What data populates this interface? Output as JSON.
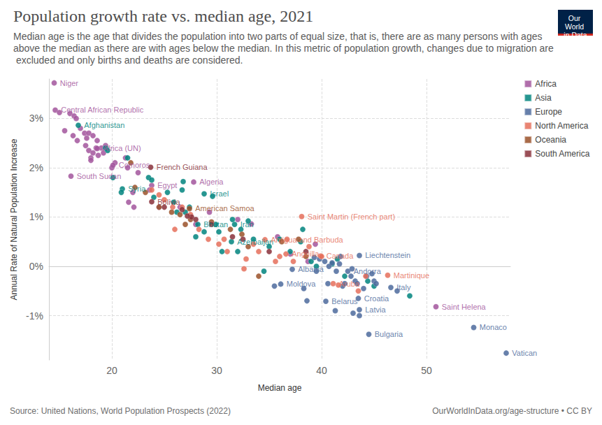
{
  "chart_data": {
    "type": "scatter",
    "title": "Population growth rate vs. median age, 2021",
    "subtitle": "Median age is the age that divides the population into two parts of equal size, that is, there are as many persons with ages above the median as there are with ages below the median. In this metric of population growth, changes due to migration are excluded and only births and deaths are considered.",
    "x_label": "Median age",
    "y_label": "Annual Rate of Natural Population Increase",
    "source": "Source: United Nations, World Population Prospects (2022)",
    "credit": "OurWorldInData.org/age-structure • CC BY",
    "logo": "Our World in Data",
    "xlim": [
      14,
      58
    ],
    "ylim": [
      -1.9,
      3.8
    ],
    "xticks": [
      20,
      30,
      40,
      50
    ],
    "yticks": [
      {
        "value": -1,
        "label": "-1%"
      },
      {
        "value": 0,
        "label": "0%"
      },
      {
        "value": 1,
        "label": "1%"
      },
      {
        "value": 2,
        "label": "2%"
      },
      {
        "value": 3,
        "label": "3%"
      }
    ],
    "grid": true,
    "legend": "top-right",
    "series": [
      {
        "name": "Africa",
        "color": "#a2559c",
        "values": [
          [
            14.5,
            3.72,
            "Niger"
          ],
          [
            14.6,
            3.17,
            "Central African Republic"
          ],
          [
            15.0,
            3.12
          ],
          [
            16.0,
            3.1
          ],
          [
            16.4,
            3.05
          ],
          [
            16.6,
            3.0
          ],
          [
            15.5,
            2.75
          ],
          [
            16.3,
            2.65
          ],
          [
            16.7,
            2.55
          ],
          [
            17.0,
            2.8
          ],
          [
            17.4,
            2.7
          ],
          [
            17.6,
            2.6
          ],
          [
            17.8,
            2.7
          ],
          [
            18.2,
            2.65
          ],
          [
            17.5,
            2.45
          ],
          [
            17.8,
            2.35
          ],
          [
            18.0,
            2.2
          ],
          [
            18.2,
            2.3
          ],
          [
            18.5,
            2.4
          ],
          [
            18.7,
            2.25
          ],
          [
            19.0,
            2.4
          ],
          [
            19.2,
            2.3
          ],
          [
            18.0,
            2.15
          ],
          [
            18.6,
            2.55
          ],
          [
            19.4,
            2.45
          ],
          [
            20.0,
            2.0
          ],
          [
            20.3,
            2.1
          ],
          [
            18.6,
            2.39,
            "Africa (UN)"
          ],
          [
            20.1,
            2.05,
            "Comoros"
          ],
          [
            16.1,
            1.83,
            "South Sudan"
          ],
          [
            21.3,
            2.2
          ],
          [
            21.5,
            2.0
          ],
          [
            22.0,
            1.5
          ],
          [
            22.5,
            1.9
          ],
          [
            21.6,
            1.3
          ],
          [
            22.1,
            1.2
          ],
          [
            23.8,
            1.64,
            "Egypt"
          ],
          [
            23.6,
            1.55
          ],
          [
            24.5,
            1.2
          ],
          [
            27.8,
            1.71,
            "Algeria"
          ],
          [
            26.5,
            1.2
          ],
          [
            29.3,
            1.1
          ],
          [
            32.0,
            0.95
          ],
          [
            33.3,
            0.86
          ],
          [
            28.0,
            0.85
          ],
          [
            35.8,
            0.6
          ],
          [
            37.0,
            0.25
          ],
          [
            38.7,
            0.1
          ],
          [
            39.4,
            0.45
          ],
          [
            50.9,
            -0.82,
            "Saint Helena"
          ]
        ]
      },
      {
        "name": "Asia",
        "color": "#00847e",
        "values": [
          [
            16.8,
            2.86,
            "Afghanistan"
          ],
          [
            19.4,
            2.4
          ],
          [
            19.6,
            2.35
          ],
          [
            20.1,
            1.8
          ],
          [
            21.0,
            1.57,
            "Syria"
          ],
          [
            21.5,
            2.2
          ],
          [
            20.9,
            1.5
          ],
          [
            23.5,
            1.8
          ],
          [
            23.8,
            1.75
          ],
          [
            24.0,
            1.4
          ],
          [
            25.3,
            1.5
          ],
          [
            26.7,
            1.55
          ],
          [
            26.8,
            1.72
          ],
          [
            28.8,
            1.47,
            "Israel"
          ],
          [
            29.6,
            1.42
          ],
          [
            27.4,
            1.2
          ],
          [
            28.2,
            0.85,
            "Bhutan"
          ],
          [
            25.9,
            1.3
          ],
          [
            27.0,
            1.1
          ],
          [
            28.8,
            0.7
          ],
          [
            29.9,
            0.85
          ],
          [
            31.7,
            0.85,
            "Iran"
          ],
          [
            32.3,
            0.75
          ],
          [
            31.5,
            0.95
          ],
          [
            31.4,
            0.5,
            "Azerbaijan"
          ],
          [
            30.5,
            0.3
          ],
          [
            32.0,
            0.3
          ],
          [
            33.5,
            0.55
          ],
          [
            34.5,
            -0.1
          ],
          [
            35.0,
            0.4
          ],
          [
            36.0,
            0.55
          ],
          [
            37.0,
            0.3
          ],
          [
            38.2,
            0.75
          ],
          [
            38.0,
            0.5
          ],
          [
            39.0,
            0.1
          ],
          [
            39.5,
            0.0
          ],
          [
            41.5,
            0.15
          ],
          [
            41.0,
            0.05
          ],
          [
            42.2,
            -0.2
          ],
          [
            44.4,
            -0.3
          ],
          [
            45.0,
            -0.4
          ],
          [
            48.4,
            -0.6
          ],
          [
            28.0,
            0.6
          ],
          [
            30.2,
            0.7
          ],
          [
            26.2,
            1.1
          ],
          [
            33.0,
            0.92
          ]
        ]
      },
      {
        "name": "Europe",
        "color": "#4c6a9c",
        "values": [
          [
            36.1,
            -0.36,
            "Moldova"
          ],
          [
            37.2,
            -0.06,
            "Albania"
          ],
          [
            38.3,
            -0.45
          ],
          [
            38.6,
            -0.7
          ],
          [
            39.3,
            0.18
          ],
          [
            39.8,
            0.15
          ],
          [
            40.3,
            0.1
          ],
          [
            40.7,
            0.0
          ],
          [
            41.0,
            0.07
          ],
          [
            41.4,
            -0.1
          ],
          [
            41.7,
            0.05
          ],
          [
            41.8,
            0.2
          ],
          [
            40.6,
            -0.35
          ],
          [
            41.3,
            -0.9
          ],
          [
            40.4,
            -0.71,
            "Belarus"
          ],
          [
            42.0,
            -0.4
          ],
          [
            42.5,
            -0.1,
            "Andorra"
          ],
          [
            42.8,
            -0.2
          ],
          [
            43.2,
            -0.3
          ],
          [
            43.6,
            0.22,
            "Liechtenstein"
          ],
          [
            43.0,
            -0.95
          ],
          [
            43.5,
            -0.65,
            "Croatia"
          ],
          [
            43.6,
            -0.88,
            "Latvia"
          ],
          [
            43.6,
            -1.0
          ],
          [
            44.0,
            -0.45
          ],
          [
            44.5,
            -1.38,
            "Bulgaria"
          ],
          [
            44.8,
            -0.15
          ],
          [
            45.0,
            -0.3
          ],
          [
            45.2,
            -0.35
          ],
          [
            46.6,
            -0.43,
            "Italy"
          ],
          [
            47.2,
            -0.5
          ],
          [
            42.9,
            -0.05
          ],
          [
            54.5,
            -1.24,
            "Monaco"
          ],
          [
            57.6,
            -1.76,
            "Vatican"
          ],
          [
            35.5,
            -0.4
          ],
          [
            39.5,
            -0.1
          ],
          [
            42.2,
            -0.35
          ],
          [
            44.3,
            -0.2
          ],
          [
            43.4,
            -0.35
          ]
        ]
      },
      {
        "name": "North America",
        "color": "#e56e5a",
        "values": [
          [
            38.1,
            1.01,
            "Saint Martin (French part)"
          ],
          [
            34.6,
            0.54,
            "Antigua and Barbuda"
          ],
          [
            39.9,
            0.21,
            "Canada"
          ],
          [
            36.6,
            0.25,
            "Anguilla"
          ],
          [
            46.3,
            -0.18,
            "Martinique"
          ],
          [
            41.1,
            -0.35,
            "Aruba"
          ],
          [
            23.8,
            1.55
          ],
          [
            24.5,
            1.45
          ],
          [
            25.0,
            1.35
          ],
          [
            26.0,
            0.75
          ],
          [
            26.7,
            1.2
          ],
          [
            27.5,
            1.05
          ],
          [
            28.3,
            0.75
          ],
          [
            29.2,
            0.55
          ],
          [
            30.2,
            0.45
          ],
          [
            31.0,
            0.3
          ],
          [
            32.6,
            -0.05
          ],
          [
            32.8,
            0.15
          ],
          [
            33.5,
            0.45
          ],
          [
            34.0,
            0.3
          ],
          [
            35.6,
            0.1
          ],
          [
            36.7,
            0.55
          ],
          [
            37.3,
            0.1
          ],
          [
            38.8,
            0.4
          ],
          [
            40.0,
            0.2
          ],
          [
            41.6,
            -0.38
          ],
          [
            43.5,
            -0.5
          ],
          [
            44.2,
            -0.2
          ],
          [
            30.7,
            0.55
          ],
          [
            25.8,
            1.2
          ],
          [
            36.0,
            0.2
          ]
        ]
      },
      {
        "name": "Oceania",
        "color": "#9a5129",
        "values": [
          [
            27.4,
            1.17,
            "American Samoa"
          ],
          [
            21.8,
            2.1
          ],
          [
            22.2,
            1.6
          ],
          [
            23.2,
            1.5
          ],
          [
            24.5,
            1.2
          ],
          [
            25.7,
            1.1
          ],
          [
            26.5,
            1.05
          ],
          [
            27.5,
            0.95
          ],
          [
            29.5,
            0.9
          ],
          [
            31.3,
            0.75
          ],
          [
            32.4,
            0.65
          ],
          [
            33.0,
            0.4
          ],
          [
            36.2,
            0.5
          ],
          [
            37.8,
            0.55
          ],
          [
            38.5,
            0.2
          ],
          [
            34.0,
            -0.2
          ],
          [
            27.0,
            0.85
          ]
        ]
      },
      {
        "name": "South America",
        "color": "#883039",
        "values": [
          [
            23.7,
            2.01,
            "French Guiana"
          ],
          [
            23.8,
            1.31,
            "Bolivia"
          ],
          [
            25.0,
            1.2
          ],
          [
            26.7,
            1.15
          ],
          [
            27.6,
            1.0
          ],
          [
            28.0,
            0.95
          ],
          [
            29.5,
            0.85
          ],
          [
            31.5,
            0.6
          ],
          [
            32.5,
            0.55
          ],
          [
            35.0,
            0.3
          ],
          [
            38.5,
            0.3
          ],
          [
            27.2,
            1.02
          ]
        ]
      }
    ]
  }
}
